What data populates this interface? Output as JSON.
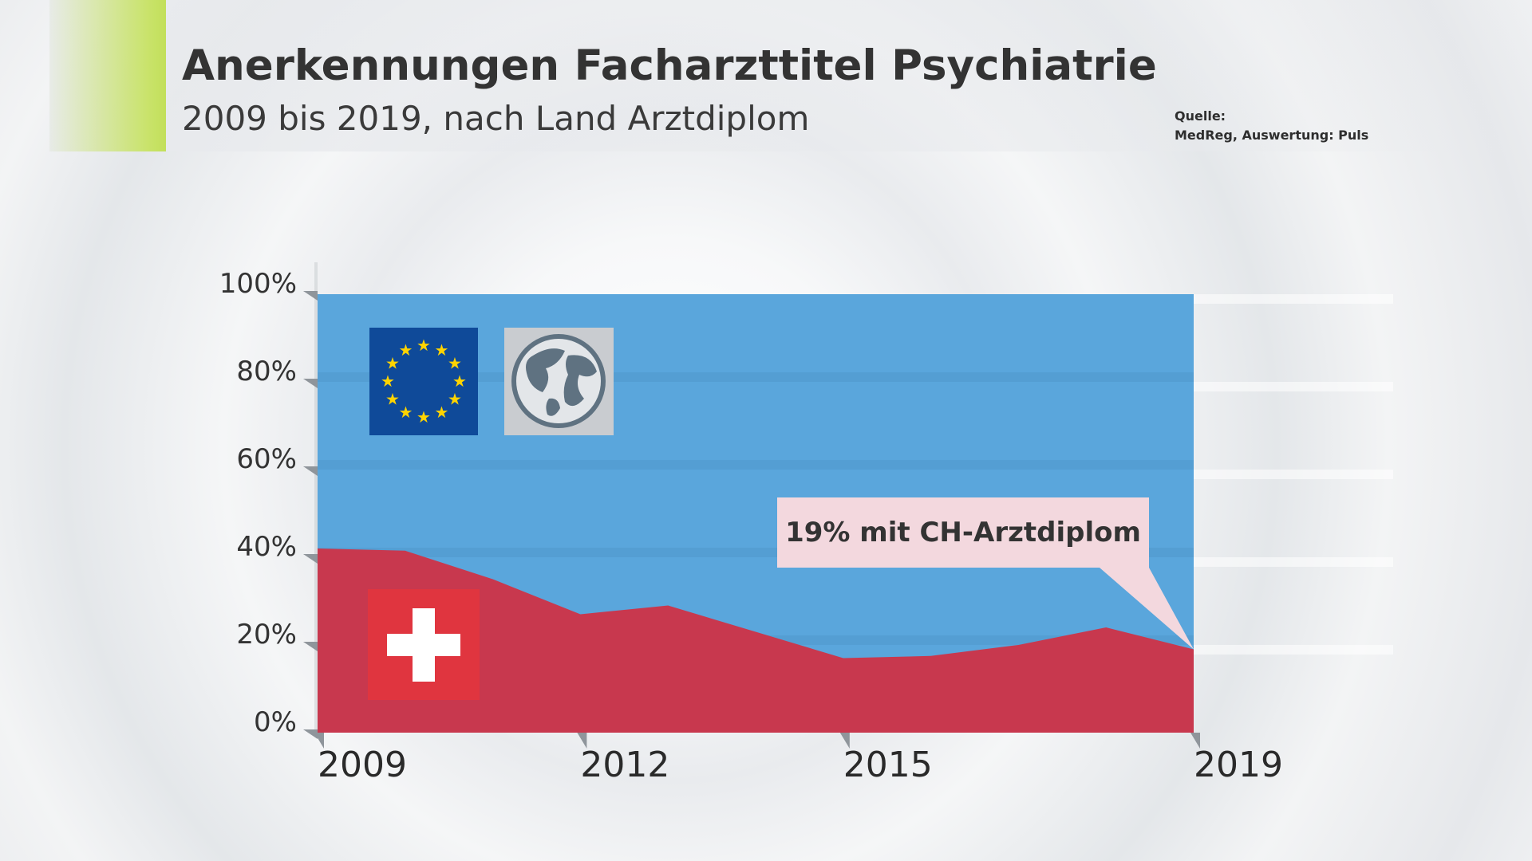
{
  "header": {
    "title": "Anerkennungen Facharzttitel Psychiatrie",
    "subtitle": "2009 bis 2019, nach Land Arztdiplom",
    "source_label": "Quelle:",
    "source_text": "MedReg, Auswertung: Puls"
  },
  "colors": {
    "foreign_area": "#5aa6dc",
    "ch_area": "#c8384e",
    "accent": "#c9e36a",
    "callout_bg": "#f3d8de"
  },
  "icons": {
    "eu": "eu-flag-icon",
    "world": "globe-icon",
    "ch": "swiss-flag-icon"
  },
  "chart_data": {
    "type": "area",
    "x": [
      2009,
      2010,
      2011,
      2012,
      2013,
      2014,
      2015,
      2016,
      2017,
      2018,
      2019
    ],
    "series": [
      {
        "values": [
          100,
          100,
          100,
          100,
          100,
          100,
          100,
          100,
          100,
          100,
          100
        ]
      },
      {
        "values": [
          42,
          41.5,
          35,
          27,
          29,
          23,
          17,
          17.5,
          20,
          24,
          19
        ]
      }
    ],
    "x_ticks": [
      "2009",
      "2012",
      "2015",
      "2019"
    ],
    "x_tick_values": [
      2009,
      2012,
      2015,
      2019
    ],
    "y_ticks": [
      "100%",
      "80%",
      "60%",
      "40%",
      "20%",
      "0%"
    ],
    "y_tick_values": [
      100,
      80,
      60,
      40,
      20,
      0
    ],
    "xlim": [
      2009,
      2019
    ],
    "ylim": [
      0,
      100
    ],
    "annotation": "19% mit CH-Arztdiplom",
    "grid": true
  }
}
